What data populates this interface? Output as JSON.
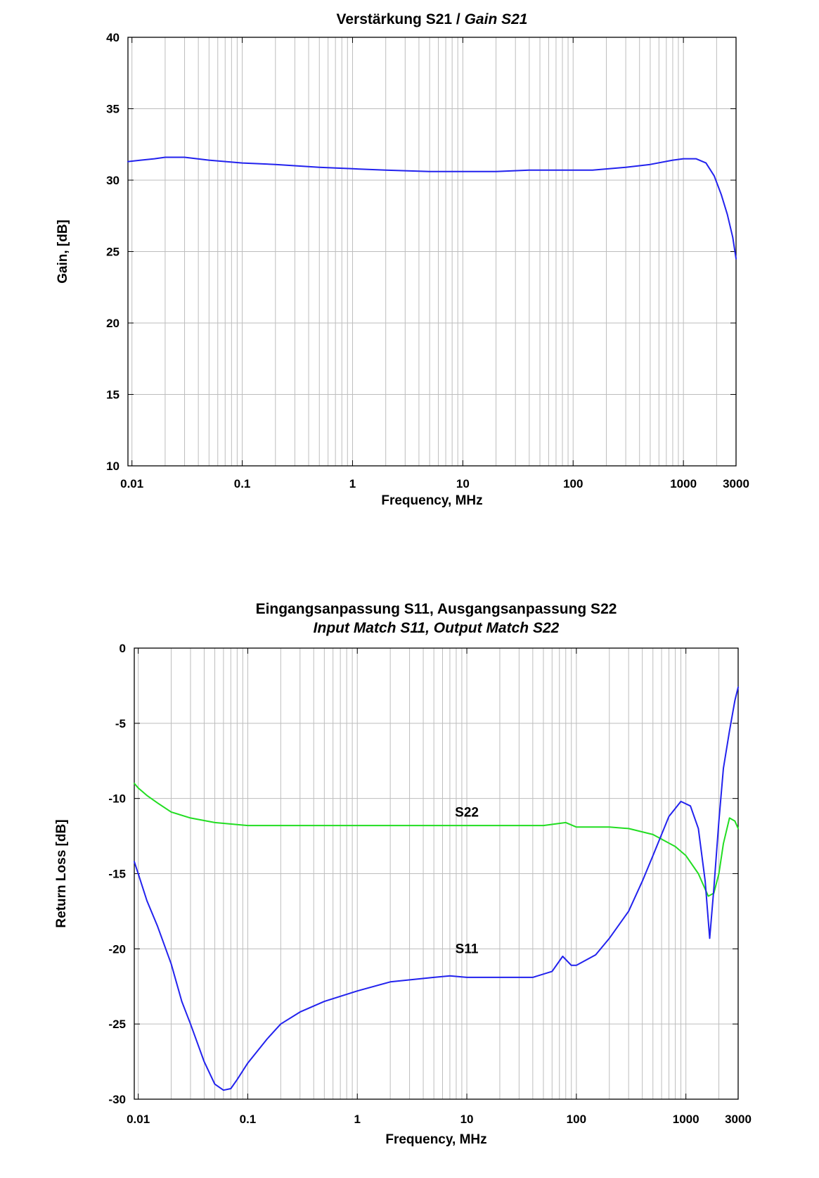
{
  "chart_data": [
    {
      "type": "line",
      "title": "Verstärkung S21 / ",
      "title_italic": "Gain S21",
      "title_line2": "",
      "xlabel": "Frequency, MHz",
      "ylabel": "Gain, [dB]",
      "xscale": "log",
      "xlim": [
        0.0092,
        3000
      ],
      "ylim": [
        10,
        40
      ],
      "x_ticks": [
        0.01,
        0.1,
        1,
        10,
        100,
        1000,
        3000
      ],
      "x_tick_labels": [
        "0.01",
        "0.1",
        "1",
        "10",
        "100",
        "1000",
        "3000"
      ],
      "y_ticks": [
        10,
        15,
        20,
        25,
        30,
        35,
        40
      ],
      "y_tick_labels": [
        "10",
        "15",
        "20",
        "25",
        "30",
        "35",
        "40"
      ],
      "grid": true,
      "series": [
        {
          "name": "",
          "color": "#2222ee",
          "x": [
            0.0092,
            0.012,
            0.016,
            0.02,
            0.03,
            0.05,
            0.1,
            0.2,
            0.5,
            1,
            2,
            5,
            10,
            20,
            40,
            80,
            150,
            300,
            500,
            800,
            1000,
            1300,
            1600,
            1900,
            2200,
            2500,
            2800,
            3000
          ],
          "y": [
            31.3,
            31.4,
            31.5,
            31.6,
            31.6,
            31.4,
            31.2,
            31.1,
            30.9,
            30.8,
            30.7,
            30.6,
            30.6,
            30.6,
            30.7,
            30.7,
            30.7,
            30.9,
            31.1,
            31.4,
            31.5,
            31.5,
            31.2,
            30.3,
            29.0,
            27.6,
            26.0,
            24.5
          ]
        }
      ]
    },
    {
      "type": "line",
      "title": "Eingangsanpassung S11, Ausgangsanpassung S22",
      "title_italic": "",
      "title_line2": "Input Match S11, Output Match S22",
      "xlabel": "Frequency, MHz",
      "ylabel": "Return Loss [dB]",
      "xscale": "log",
      "xlim": [
        0.0092,
        3000
      ],
      "ylim": [
        -30,
        0
      ],
      "x_ticks": [
        0.01,
        0.1,
        1,
        10,
        100,
        1000,
        3000
      ],
      "x_tick_labels": [
        "0.01",
        "0.1",
        "1",
        "10",
        "100",
        "1000",
        "3000"
      ],
      "y_ticks": [
        -30,
        -25,
        -20,
        -15,
        -10,
        -5,
        0
      ],
      "y_tick_labels": [
        "-30",
        "-25",
        "-20",
        "-15",
        "-10",
        "-5",
        "0"
      ],
      "grid": true,
      "series": [
        {
          "name": "S22",
          "color": "#22dd22",
          "label_at": [
            10,
            -11.2
          ],
          "x": [
            0.0092,
            0.01,
            0.012,
            0.015,
            0.02,
            0.03,
            0.05,
            0.1,
            0.2,
            0.5,
            1,
            5,
            10,
            50,
            80,
            100,
            200,
            300,
            500,
            800,
            1000,
            1300,
            1600,
            1800,
            2000,
            2200,
            2500,
            2800,
            3000
          ],
          "y": [
            -9.0,
            -9.3,
            -9.8,
            -10.3,
            -10.9,
            -11.3,
            -11.6,
            -11.8,
            -11.8,
            -11.8,
            -11.8,
            -11.8,
            -11.8,
            -11.8,
            -11.6,
            -11.9,
            -11.9,
            -12.0,
            -12.4,
            -13.2,
            -13.8,
            -15.0,
            -16.5,
            -16.3,
            -15.0,
            -13.0,
            -11.3,
            -11.5,
            -12.0
          ]
        },
        {
          "name": "S11",
          "color": "#2222ee",
          "label_at": [
            10,
            -20.3
          ],
          "x": [
            0.0092,
            0.01,
            0.012,
            0.015,
            0.02,
            0.025,
            0.03,
            0.04,
            0.05,
            0.06,
            0.07,
            0.08,
            0.1,
            0.15,
            0.2,
            0.3,
            0.5,
            1,
            2,
            5,
            7,
            10,
            20,
            40,
            60,
            75,
            90,
            100,
            150,
            200,
            300,
            400,
            500,
            700,
            900,
            1100,
            1300,
            1500,
            1650,
            1800,
            2000,
            2200,
            2500,
            2800,
            3000
          ],
          "y": [
            -14.2,
            -15.0,
            -16.8,
            -18.5,
            -21.0,
            -23.5,
            -25.0,
            -27.5,
            -29.0,
            -29.4,
            -29.3,
            -28.7,
            -27.6,
            -26.0,
            -25.0,
            -24.2,
            -23.5,
            -22.8,
            -22.2,
            -21.9,
            -21.8,
            -21.9,
            -21.9,
            -21.9,
            -21.5,
            -20.5,
            -21.1,
            -21.1,
            -20.4,
            -19.3,
            -17.5,
            -15.5,
            -13.8,
            -11.2,
            -10.2,
            -10.5,
            -12.0,
            -15.5,
            -19.3,
            -16.0,
            -11.5,
            -8.0,
            -5.5,
            -3.5,
            -2.6
          ]
        }
      ]
    }
  ]
}
